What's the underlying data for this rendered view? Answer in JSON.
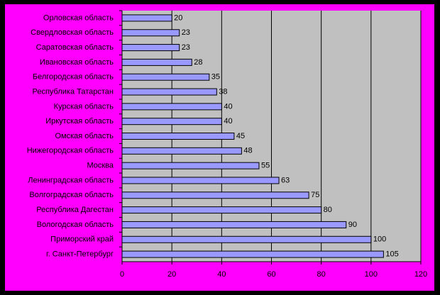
{
  "chart_data": {
    "type": "bar",
    "orientation": "horizontal",
    "categories": [
      "Орловская область",
      "Свердловская область",
      "Саратовская область",
      "Ивановская область",
      "Белгородская область",
      "Республика Татарстан",
      "Курская область",
      "Иркутская область",
      "Омская область",
      "Нижегородская область",
      "Москва",
      "Ленинградская область",
      "Волгоградская область",
      "Республика Дагестан",
      "Вологодская область",
      "Приморский край",
      "г. Санкт-Петербург"
    ],
    "values": [
      20,
      23,
      23,
      28,
      35,
      38,
      40,
      40,
      45,
      48,
      55,
      63,
      75,
      80,
      90,
      100,
      105
    ],
    "color": "#9999ff",
    "xlim": [
      0,
      120
    ],
    "xticks": [
      0,
      20,
      40,
      60,
      80,
      100,
      120
    ],
    "grid": true
  }
}
